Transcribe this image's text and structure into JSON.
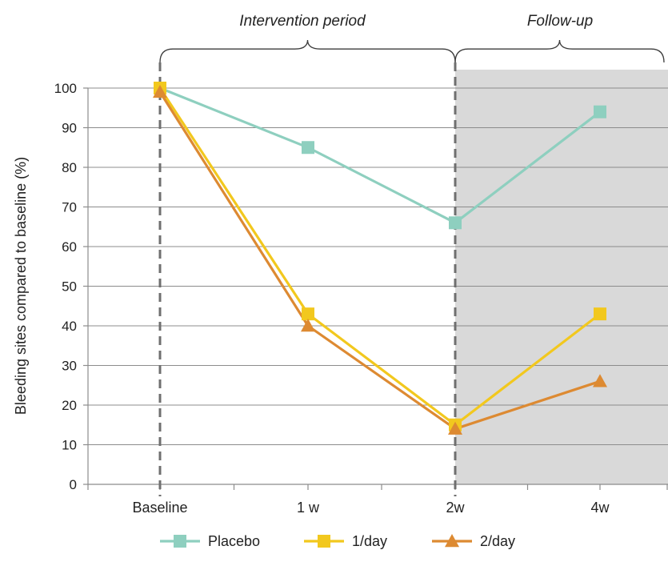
{
  "chart_data": {
    "type": "line",
    "ylabel": "Bleeding sites compared to baseline (%)",
    "xlabel": "",
    "categories": [
      "Baseline",
      "1 w",
      "2w",
      "4w"
    ],
    "ylim": [
      0,
      100
    ],
    "yticks": [
      0,
      10,
      20,
      30,
      40,
      50,
      60,
      70,
      80,
      90,
      100
    ],
    "grid": true,
    "legend_placement": "bottom",
    "periods": [
      {
        "label": "Intervention period",
        "from": "Baseline",
        "to": "2w",
        "shaded": false
      },
      {
        "label": "Follow-up",
        "from": "2w",
        "to": "4w",
        "shaded": true
      }
    ],
    "series": [
      {
        "name": "Placebo",
        "color": "#8ecfbf",
        "marker": "square",
        "values": [
          100,
          85,
          66,
          94
        ]
      },
      {
        "name": "1/day",
        "color": "#f2c81e",
        "marker": "square",
        "values": [
          100,
          43,
          15,
          43
        ]
      },
      {
        "name": "2/day",
        "color": "#dd8a32",
        "marker": "triangle",
        "values": [
          99,
          40,
          14,
          26
        ]
      }
    ]
  }
}
